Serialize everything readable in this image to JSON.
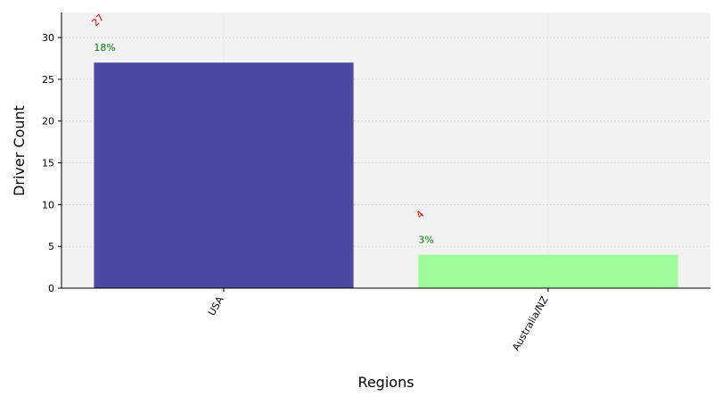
{
  "chart_data": {
    "type": "bar",
    "categories": [
      "USA",
      "Australia/NZ"
    ],
    "values": [
      27,
      4
    ],
    "percent_labels": [
      "18%",
      "3%"
    ],
    "value_labels": [
      "27",
      "4"
    ],
    "bar_colors": [
      "#4a48a0",
      "#9efc9a"
    ],
    "xlabel": "Regions",
    "ylabel": "Driver Count",
    "ylim": [
      0,
      33
    ],
    "yticks": [
      0,
      5,
      10,
      15,
      20,
      25,
      30
    ],
    "grid": true,
    "legend": "none",
    "colors": {
      "plot_background": "#f2f2f2",
      "value_label": "#ff0000",
      "percent_label": "#008000",
      "grid": "#c8c8c8"
    }
  }
}
